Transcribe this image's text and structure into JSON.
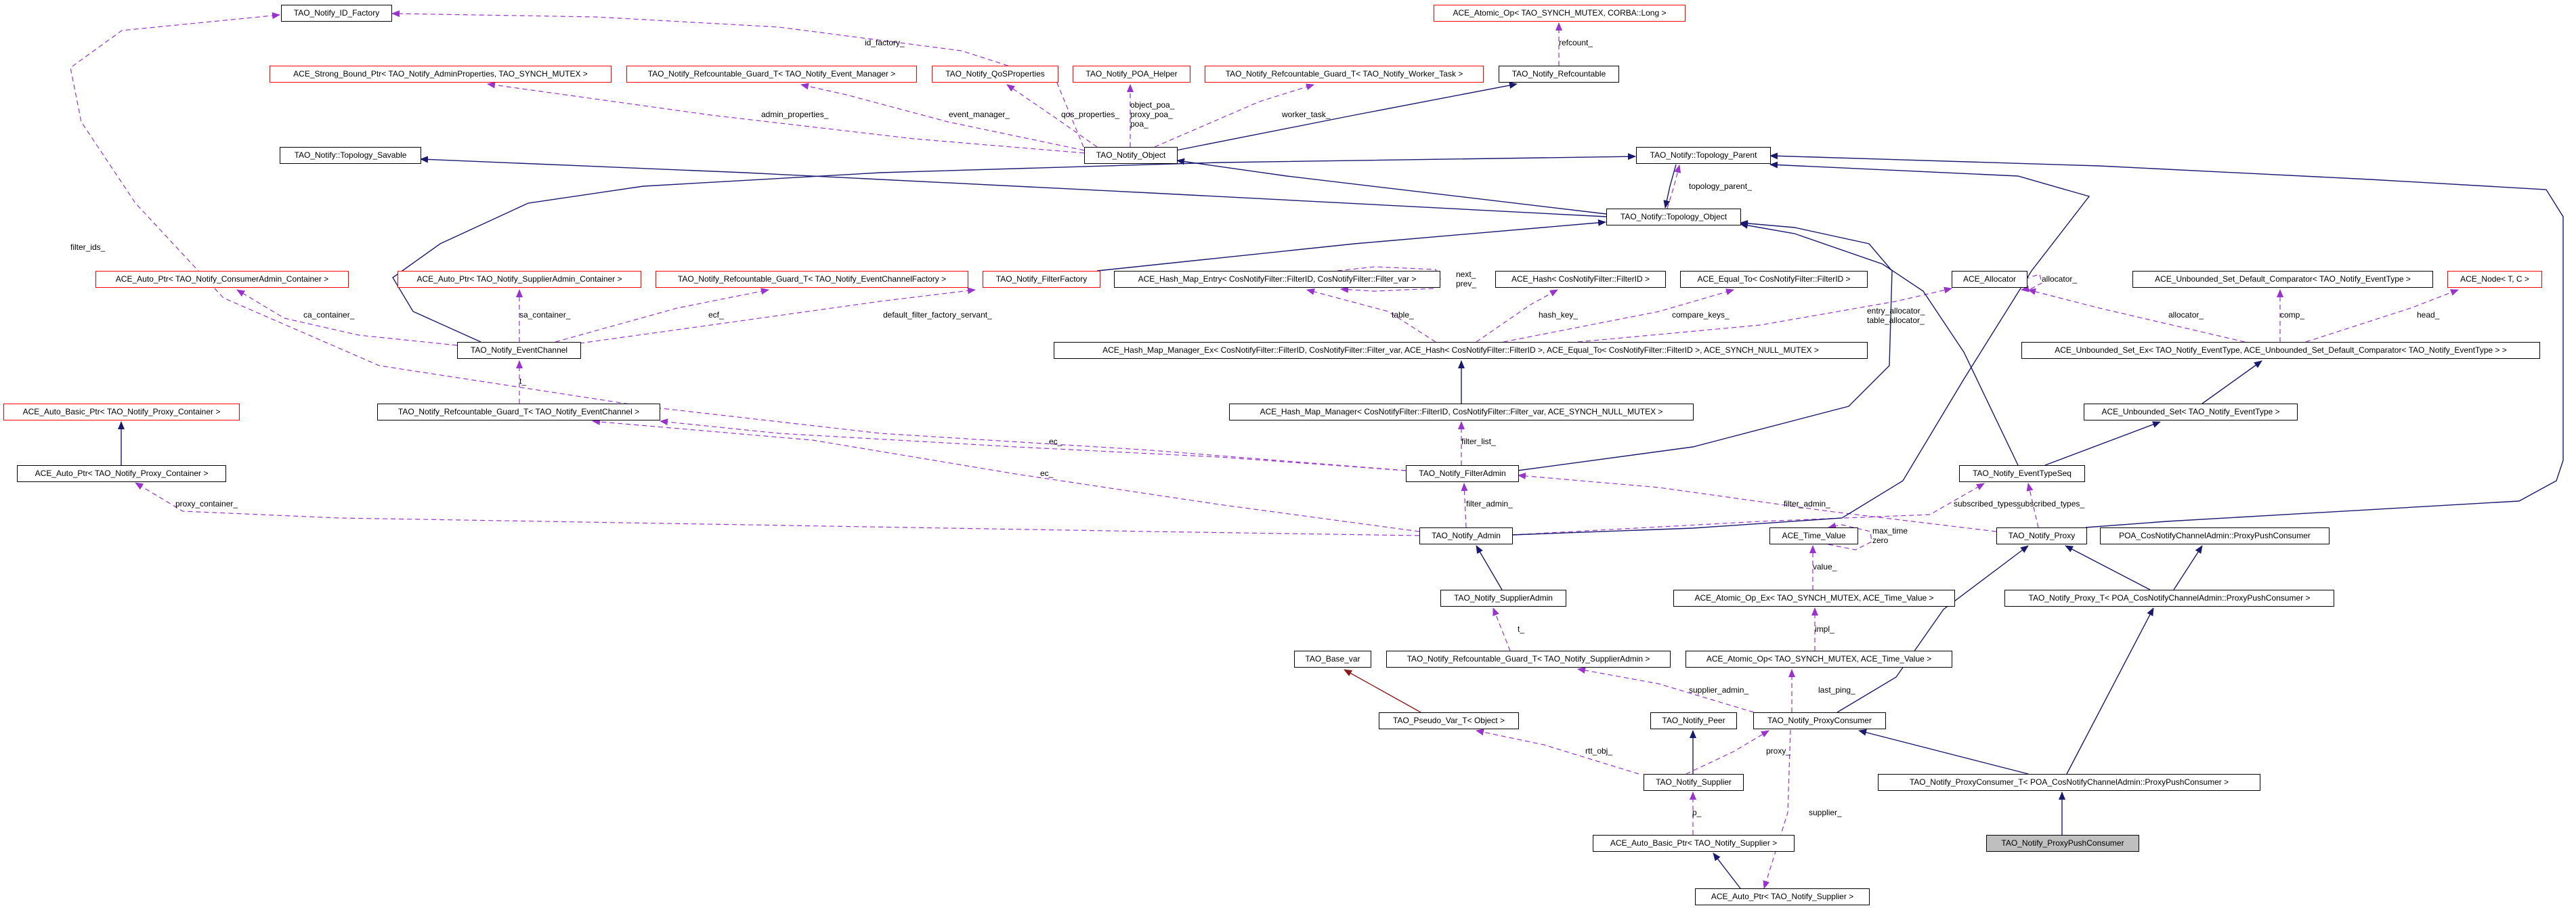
{
  "colors": {
    "inheritance": "#191970",
    "usage": "#9a32cd",
    "private_inheritance": "#8b1a1a",
    "undocumented_border": "#ff0000",
    "highlight_fill": "#bfbfbf"
  },
  "nodes": [
    {
      "id": "idf",
      "label": "TAO_Notify_ID_Factory",
      "border": "black"
    },
    {
      "id": "aol",
      "label": "ACE_Atomic_Op< TAO_SYNCH_MUTEX, CORBA::Long >",
      "border": "red"
    },
    {
      "id": "sbp",
      "label": "ACE_Strong_Bound_Ptr< TAO_Notify_AdminProperties, TAO_SYNCH_MUTEX >",
      "border": "red"
    },
    {
      "id": "rgem",
      "label": "TAO_Notify_Refcountable_Guard_T< TAO_Notify_Event_Manager >",
      "border": "red"
    },
    {
      "id": "qos",
      "label": "TAO_Notify_QoSProperties",
      "border": "red"
    },
    {
      "id": "poah",
      "label": "TAO_Notify_POA_Helper",
      "border": "red"
    },
    {
      "id": "rgwt",
      "label": "TAO_Notify_Refcountable_Guard_T< TAO_Notify_Worker_Task >",
      "border": "red"
    },
    {
      "id": "refc",
      "label": "TAO_Notify_Refcountable",
      "border": "black"
    },
    {
      "id": "tsav",
      "label": "TAO_Notify::Topology_Savable",
      "border": "black"
    },
    {
      "id": "obj",
      "label": "TAO_Notify_Object",
      "border": "black"
    },
    {
      "id": "tpar",
      "label": "TAO_Notify::Topology_Parent",
      "border": "black"
    },
    {
      "id": "tobj",
      "label": "TAO_Notify::Topology_Object",
      "border": "black"
    },
    {
      "id": "apca",
      "label": "ACE_Auto_Ptr< TAO_Notify_ConsumerAdmin_Container >",
      "border": "red"
    },
    {
      "id": "apsa",
      "label": "ACE_Auto_Ptr< TAO_Notify_SupplierAdmin_Container >",
      "border": "red"
    },
    {
      "id": "rgecf",
      "label": "TAO_Notify_Refcountable_Guard_T< TAO_Notify_EventChannelFactory >",
      "border": "red"
    },
    {
      "id": "ff",
      "label": "TAO_Notify_FilterFactory",
      "border": "red"
    },
    {
      "id": "hme",
      "label": "ACE_Hash_Map_Entry< CosNotifyFilter::FilterID, CosNotifyFilter::Filter_var >",
      "border": "black"
    },
    {
      "id": "hash",
      "label": "ACE_Hash< CosNotifyFilter::FilterID >",
      "border": "black"
    },
    {
      "id": "eq",
      "label": "ACE_Equal_To< CosNotifyFilter::FilterID >",
      "border": "black"
    },
    {
      "id": "alloc",
      "label": "ACE_Allocator",
      "border": "black"
    },
    {
      "id": "cmp",
      "label": "ACE_Unbounded_Set_Default_Comparator< TAO_Notify_EventType >",
      "border": "black"
    },
    {
      "id": "node",
      "label": "ACE_Node< T, C >",
      "border": "red"
    },
    {
      "id": "ec",
      "label": "TAO_Notify_EventChannel",
      "border": "black"
    },
    {
      "id": "hmmex",
      "label": "ACE_Hash_Map_Manager_Ex< CosNotifyFilter::FilterID, CosNotifyFilter::Filter_var, ACE_Hash< CosNotifyFilter::FilterID >, ACE_Equal_To< CosNotifyFilter::FilterID >, ACE_SYNCH_NULL_MUTEX >",
      "border": "black"
    },
    {
      "id": "usex",
      "label": "ACE_Unbounded_Set_Ex< TAO_Notify_EventType, ACE_Unbounded_Set_Default_Comparator< TAO_Notify_EventType > >",
      "border": "black"
    },
    {
      "id": "abppc",
      "label": "ACE_Auto_Basic_Ptr< TAO_Notify_Proxy_Container >",
      "border": "red"
    },
    {
      "id": "rgec",
      "label": "TAO_Notify_Refcountable_Guard_T< TAO_Notify_EventChannel >",
      "border": "black"
    },
    {
      "id": "hmm",
      "label": "ACE_Hash_Map_Manager< CosNotifyFilter::FilterID, CosNotifyFilter::Filter_var, ACE_SYNCH_NULL_MUTEX >",
      "border": "black"
    },
    {
      "id": "us",
      "label": "ACE_Unbounded_Set< TAO_Notify_EventType >",
      "border": "black"
    },
    {
      "id": "appc",
      "label": "ACE_Auto_Ptr< TAO_Notify_Proxy_Container >",
      "border": "black"
    },
    {
      "id": "fa",
      "label": "TAO_Notify_FilterAdmin",
      "border": "black"
    },
    {
      "id": "ets",
      "label": "TAO_Notify_EventTypeSeq",
      "border": "black"
    },
    {
      "id": "adm",
      "label": "TAO_Notify_Admin",
      "border": "black"
    },
    {
      "id": "tv",
      "label": "ACE_Time_Value",
      "border": "black"
    },
    {
      "id": "prx",
      "label": "TAO_Notify_Proxy",
      "border": "black"
    },
    {
      "id": "poappc",
      "label": "POA_CosNotifyChannelAdmin::ProxyPushConsumer",
      "border": "black"
    },
    {
      "id": "sa",
      "label": "TAO_Notify_SupplierAdmin",
      "border": "black"
    },
    {
      "id": "aoex",
      "label": "ACE_Atomic_Op_Ex< TAO_SYNCH_MUTEX, ACE_Time_Value >",
      "border": "black"
    },
    {
      "id": "prxt",
      "label": "TAO_Notify_Proxy_T< POA_CosNotifyChannelAdmin::ProxyPushConsumer >",
      "border": "black"
    },
    {
      "id": "bvar",
      "label": "TAO_Base_var",
      "border": "black"
    },
    {
      "id": "rgsa",
      "label": "TAO_Notify_Refcountable_Guard_T< TAO_Notify_SupplierAdmin >",
      "border": "black"
    },
    {
      "id": "aotv",
      "label": "ACE_Atomic_Op< TAO_SYNCH_MUTEX, ACE_Time_Value >",
      "border": "black"
    },
    {
      "id": "pvar",
      "label": "TAO_Pseudo_Var_T< Object >",
      "border": "black"
    },
    {
      "id": "peer",
      "label": "TAO_Notify_Peer",
      "border": "black"
    },
    {
      "id": "pc",
      "label": "TAO_Notify_ProxyConsumer",
      "border": "black"
    },
    {
      "id": "sup",
      "label": "TAO_Notify_Supplier",
      "border": "black"
    },
    {
      "id": "pct",
      "label": "TAO_Notify_ProxyConsumer_T< POA_CosNotifyChannelAdmin::ProxyPushConsumer >",
      "border": "black"
    },
    {
      "id": "abps",
      "label": "ACE_Auto_Basic_Ptr< TAO_Notify_Supplier >",
      "border": "black"
    },
    {
      "id": "ppc",
      "label": "TAO_Notify_ProxyPushConsumer",
      "border": "black",
      "highlight": true
    },
    {
      "id": "aps",
      "label": "ACE_Auto_Ptr< TAO_Notify_Supplier >",
      "border": "black"
    }
  ],
  "edges": [
    {
      "from": "obj",
      "to": "idf",
      "kind": "usage",
      "label": [
        "id_factory_"
      ]
    },
    {
      "from": "fa",
      "to": "idf",
      "kind": "usage",
      "label": [
        "filter_ids_"
      ]
    },
    {
      "from": "obj",
      "to": "sbp",
      "kind": "usage",
      "label": [
        "admin_properties_"
      ]
    },
    {
      "from": "obj",
      "to": "rgem",
      "kind": "usage",
      "label": [
        "event_manager_"
      ]
    },
    {
      "from": "obj",
      "to": "qos",
      "kind": "usage",
      "label": [
        "qos_properties_"
      ]
    },
    {
      "from": "obj",
      "to": "poah",
      "kind": "usage",
      "label": [
        "object_poa_",
        "proxy_poa_",
        "poa_"
      ]
    },
    {
      "from": "obj",
      "to": "rgwt",
      "kind": "usage",
      "label": [
        "worker_task_"
      ]
    },
    {
      "from": "refc",
      "to": "aol",
      "kind": "usage",
      "label": [
        "refcount_"
      ]
    },
    {
      "from": "ec",
      "to": "apca",
      "kind": "usage",
      "label": [
        "ca_container_"
      ]
    },
    {
      "from": "ec",
      "to": "apsa",
      "kind": "usage",
      "label": [
        "sa_container_"
      ]
    },
    {
      "from": "ec",
      "to": "rgecf",
      "kind": "usage",
      "label": [
        "ecf_"
      ]
    },
    {
      "from": "ec",
      "to": "ff",
      "kind": "usage",
      "label": [
        "default_filter_factory_servant_"
      ]
    },
    {
      "from": "rgec",
      "to": "ec",
      "kind": "usage",
      "label": [
        "t_"
      ]
    },
    {
      "from": "hmmex",
      "to": "hme",
      "kind": "usage",
      "label": [
        "table_"
      ]
    },
    {
      "from": "hme",
      "to": "hme",
      "kind": "usage",
      "label": [
        "next_",
        "prev_"
      ]
    },
    {
      "from": "hmmex",
      "to": "hash",
      "kind": "usage",
      "label": [
        "hash_key_"
      ]
    },
    {
      "from": "hmmex",
      "to": "eq",
      "kind": "usage",
      "label": [
        "compare_keys_"
      ]
    },
    {
      "from": "hmmex",
      "to": "alloc",
      "kind": "usage",
      "label": [
        "entry_allocator_",
        "table_allocator_"
      ]
    },
    {
      "from": "alloc",
      "to": "alloc",
      "kind": "usage",
      "label": [
        "allocator_"
      ]
    },
    {
      "from": "usex",
      "to": "alloc",
      "kind": "usage",
      "label": [
        "allocator_"
      ]
    },
    {
      "from": "usex",
      "to": "cmp",
      "kind": "usage",
      "label": [
        "comp_"
      ]
    },
    {
      "from": "usex",
      "to": "node",
      "kind": "usage",
      "label": [
        "head_"
      ]
    },
    {
      "from": "fa",
      "to": "rgec",
      "kind": "usage",
      "label": [
        "ec_"
      ]
    },
    {
      "from": "adm",
      "to": "rgec",
      "kind": "usage",
      "label": [
        "ec_"
      ]
    },
    {
      "from": "adm",
      "to": "appc",
      "kind": "usage",
      "label": [
        "proxy_container_"
      ]
    },
    {
      "from": "fa",
      "to": "hmm",
      "kind": "usage",
      "label": [
        "filter_list_"
      ]
    },
    {
      "from": "adm",
      "to": "fa",
      "kind": "usage",
      "label": [
        "filter_admin_"
      ]
    },
    {
      "from": "prx",
      "to": "fa",
      "kind": "usage",
      "label": [
        "filter_admin_"
      ]
    },
    {
      "from": "adm",
      "to": "ets",
      "kind": "usage",
      "label": [
        "subscribed_types_"
      ]
    },
    {
      "from": "prx",
      "to": "ets",
      "kind": "usage",
      "label": [
        "subscribed_types_"
      ]
    },
    {
      "from": "tv",
      "to": "tv",
      "kind": "usage",
      "label": [
        "max_time",
        "zero"
      ]
    },
    {
      "from": "aoex",
      "to": "tv",
      "kind": "usage",
      "label": [
        "value_"
      ]
    },
    {
      "from": "aotv",
      "to": "aoex",
      "kind": "usage",
      "label": [
        "impl_"
      ]
    },
    {
      "from": "pc",
      "to": "rgsa",
      "kind": "usage",
      "label": [
        "supplier_admin_"
      ]
    },
    {
      "from": "rgsa",
      "to": "sa",
      "kind": "usage",
      "label": [
        "t_"
      ]
    },
    {
      "from": "pc",
      "to": "aotv",
      "kind": "usage",
      "label": [
        "last_ping_"
      ]
    },
    {
      "from": "sup",
      "to": "pvar",
      "kind": "usage",
      "label": [
        "rtt_obj_"
      ]
    },
    {
      "from": "sup",
      "to": "pc",
      "kind": "usage",
      "label": [
        "proxy_"
      ]
    },
    {
      "from": "abps",
      "to": "sup",
      "kind": "usage",
      "label": [
        "p_"
      ]
    },
    {
      "from": "pc",
      "to": "aps",
      "kind": "usage",
      "label": [
        "supplier_"
      ]
    },
    {
      "from": "tobj",
      "to": "tpar",
      "kind": "usage",
      "label": [
        "topology_parent_"
      ]
    },
    {
      "from": "obj",
      "to": "refc",
      "kind": "inheritance"
    },
    {
      "from": "tobj",
      "to": "tsav",
      "kind": "inheritance"
    },
    {
      "from": "tobj",
      "to": "obj",
      "kind": "inheritance"
    },
    {
      "from": "tpar",
      "to": "tobj",
      "kind": "inheritance"
    },
    {
      "from": "ec",
      "to": "tpar",
      "kind": "inheritance"
    },
    {
      "from": "ff",
      "to": "tobj",
      "kind": "inheritance"
    },
    {
      "from": "fa",
      "to": "tobj",
      "kind": "inheritance"
    },
    {
      "from": "ets",
      "to": "tobj",
      "kind": "inheritance"
    },
    {
      "from": "adm",
      "to": "tpar",
      "kind": "inheritance"
    },
    {
      "from": "prx",
      "to": "tpar",
      "kind": "inheritance"
    },
    {
      "from": "hmm",
      "to": "hmmex",
      "kind": "inheritance"
    },
    {
      "from": "us",
      "to": "usex",
      "kind": "inheritance"
    },
    {
      "from": "ets",
      "to": "us",
      "kind": "inheritance"
    },
    {
      "from": "appc",
      "to": "abppc",
      "kind": "inheritance"
    },
    {
      "from": "sa",
      "to": "adm",
      "kind": "inheritance"
    },
    {
      "from": "pc",
      "to": "prx",
      "kind": "inheritance"
    },
    {
      "from": "prxt",
      "to": "prx",
      "kind": "inheritance"
    },
    {
      "from": "prxt",
      "to": "poappc",
      "kind": "inheritance"
    },
    {
      "from": "pct",
      "to": "pc",
      "kind": "inheritance"
    },
    {
      "from": "pct",
      "to": "prxt",
      "kind": "inheritance"
    },
    {
      "from": "ppc",
      "to": "pct",
      "kind": "inheritance"
    },
    {
      "from": "sup",
      "to": "peer",
      "kind": "inheritance"
    },
    {
      "from": "aps",
      "to": "abps",
      "kind": "inheritance"
    },
    {
      "from": "pvar",
      "to": "bvar",
      "kind": "private_inheritance"
    }
  ]
}
